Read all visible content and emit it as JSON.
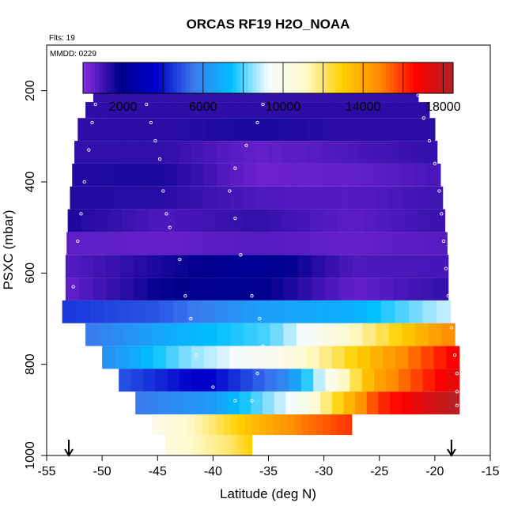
{
  "chart_data": {
    "type": "heatmap",
    "title": "ORCAS RF19 H2O_NOAA",
    "flights_note": "Flts: 19",
    "date_note": "MMDD: 0229",
    "xlabel": "Latitude (deg N)",
    "ylabel": "PSXC (mbar)",
    "xlim": [
      -55,
      -15
    ],
    "ylim": [
      1000,
      100
    ],
    "x_ticks": [
      -55,
      -50,
      -45,
      -40,
      -35,
      -30,
      -25,
      -20,
      -15
    ],
    "y_ticks": [
      200,
      400,
      600,
      800,
      1000
    ],
    "colorbar": {
      "range": [
        0,
        18500
      ],
      "tick_values": [
        2000,
        6000,
        10000,
        14000,
        18000
      ],
      "tick_labels": [
        "2000",
        "6000",
        "10000",
        "14000",
        "18000"
      ],
      "colors": [
        "#8a2be2",
        "#00008b",
        "#0000cd",
        "#3a7bef",
        "#00bfff",
        "#f5fbff",
        "#fffacd",
        "#ffd000",
        "#ff8c00",
        "#ff0000",
        "#b22222"
      ]
    },
    "arrows_at_latitude": [
      -53,
      -18.5
    ],
    "rows": [
      {
        "p_top": 175,
        "p_bottom": 225,
        "x_start": -50.8,
        "x_end": -21.5,
        "values": [
          1200,
          1200,
          1200,
          1200,
          1200
        ]
      },
      {
        "p_top": 225,
        "p_bottom": 260,
        "x_start": -51.5,
        "x_end": -20.5,
        "values": [
          1250,
          1250,
          1250,
          1300,
          1300
        ]
      },
      {
        "p_top": 260,
        "p_bottom": 310,
        "x_start": -52.2,
        "x_end": -20.0,
        "values": [
          1250,
          1300,
          1500,
          1300,
          1300
        ]
      },
      {
        "p_top": 310,
        "p_bottom": 360,
        "x_start": -52.5,
        "x_end": -19.8,
        "values": [
          1200,
          1200,
          500,
          800,
          1200
        ]
      },
      {
        "p_top": 360,
        "p_bottom": 410,
        "x_start": -52.7,
        "x_end": -19.5,
        "values": [
          1400,
          1500,
          400,
          500,
          900
        ]
      },
      {
        "p_top": 410,
        "p_bottom": 460,
        "x_start": -52.9,
        "x_end": -19.3,
        "values": [
          1400,
          1300,
          800,
          700,
          1000
        ]
      },
      {
        "p_top": 460,
        "p_bottom": 510,
        "x_start": -53.1,
        "x_end": -19.1,
        "values": [
          1500,
          800,
          1200,
          600,
          1100
        ]
      },
      {
        "p_top": 510,
        "p_bottom": 560,
        "x_start": -53.2,
        "x_end": -18.9,
        "values": [
          600,
          500,
          700,
          500,
          700
        ]
      },
      {
        "p_top": 560,
        "p_bottom": 610,
        "x_start": -53.3,
        "x_end": -18.8,
        "values": [
          700,
          1500,
          2300,
          800,
          900
        ]
      },
      {
        "p_top": 610,
        "p_bottom": 660,
        "x_start": -53.3,
        "x_end": -18.8,
        "values": [
          500,
          1800,
          2000,
          500,
          1200
        ]
      },
      {
        "p_top": 660,
        "p_bottom": 710,
        "x_start": -53.6,
        "x_end": -18.6,
        "values": [
          4500,
          5000,
          6500,
          7000,
          9000
        ]
      },
      {
        "p_top": 710,
        "p_bottom": 760,
        "x_start": -51.5,
        "x_end": -18.2,
        "values": [
          5500,
          7000,
          8000,
          11500,
          15000
        ]
      },
      {
        "p_top": 760,
        "p_bottom": 810,
        "x_start": -50.0,
        "x_end": -17.8,
        "values": [
          6000,
          8500,
          10000,
          13500,
          17000
        ]
      },
      {
        "p_top": 810,
        "p_bottom": 860,
        "x_start": -48.5,
        "x_end": -17.8,
        "values": [
          5000,
          3500,
          6000,
          14000,
          17500
        ]
      },
      {
        "p_top": 860,
        "p_bottom": 910,
        "x_start": -47.0,
        "x_end": -17.8,
        "values": [
          5500,
          6500,
          9500,
          16000,
          18500
        ]
      },
      {
        "p_top": 910,
        "p_bottom": 955,
        "x_start": -45.5,
        "x_end": -27.5,
        "values": [
          10000,
          11500,
          13500,
          15000,
          16000
        ]
      },
      {
        "p_top": 955,
        "p_bottom": 1000,
        "x_start": -44.3,
        "x_end": -36.5,
        "values": [
          10500,
          11000,
          11500,
          12000,
          13000
        ]
      }
    ],
    "flight_track": [
      [
        -50.5,
        190
      ],
      [
        -49.8,
        190
      ],
      [
        -49.0,
        190
      ],
      [
        -48.0,
        190
      ],
      [
        -47.0,
        190
      ],
      [
        -46.5,
        200
      ],
      [
        -46.0,
        230
      ],
      [
        -45.6,
        270
      ],
      [
        -45.2,
        310
      ],
      [
        -44.8,
        350
      ],
      [
        -44.5,
        420
      ],
      [
        -44.2,
        470
      ],
      [
        -43.9,
        500
      ],
      [
        -50.6,
        230
      ],
      [
        -50.9,
        270
      ],
      [
        -51.2,
        330
      ],
      [
        -51.6,
        400
      ],
      [
        -51.9,
        470
      ],
      [
        -52.2,
        530
      ],
      [
        -52.6,
        630
      ],
      [
        -43.0,
        570
      ],
      [
        -42.5,
        650
      ],
      [
        -42.0,
        700
      ],
      [
        -41.5,
        780
      ],
      [
        -40.0,
        850
      ],
      [
        -38.0,
        880
      ],
      [
        -36.5,
        880
      ],
      [
        -36.0,
        820
      ],
      [
        -35.5,
        760
      ],
      [
        -35.8,
        700
      ],
      [
        -36.5,
        650
      ],
      [
        -37.5,
        560
      ],
      [
        -38.0,
        480
      ],
      [
        -38.5,
        420
      ],
      [
        -38.0,
        370
      ],
      [
        -37.0,
        320
      ],
      [
        -36.0,
        270
      ],
      [
        -35.5,
        230
      ],
      [
        -35.0,
        200
      ],
      [
        -34.5,
        190
      ],
      [
        -33.0,
        190
      ],
      [
        -31.0,
        190
      ],
      [
        -29.0,
        190
      ],
      [
        -27.0,
        190
      ],
      [
        -25.0,
        190
      ],
      [
        -23.0,
        190
      ],
      [
        -22.0,
        190
      ],
      [
        -21.5,
        210
      ],
      [
        -21.0,
        260
      ],
      [
        -20.5,
        310
      ],
      [
        -20.0,
        360
      ],
      [
        -19.6,
        420
      ],
      [
        -19.4,
        470
      ],
      [
        -19.2,
        530
      ],
      [
        -19.0,
        590
      ],
      [
        -18.8,
        650
      ],
      [
        -18.5,
        720
      ],
      [
        -18.2,
        780
      ],
      [
        -18.0,
        820
      ],
      [
        -18.0,
        860
      ],
      [
        -18.0,
        890
      ]
    ]
  }
}
